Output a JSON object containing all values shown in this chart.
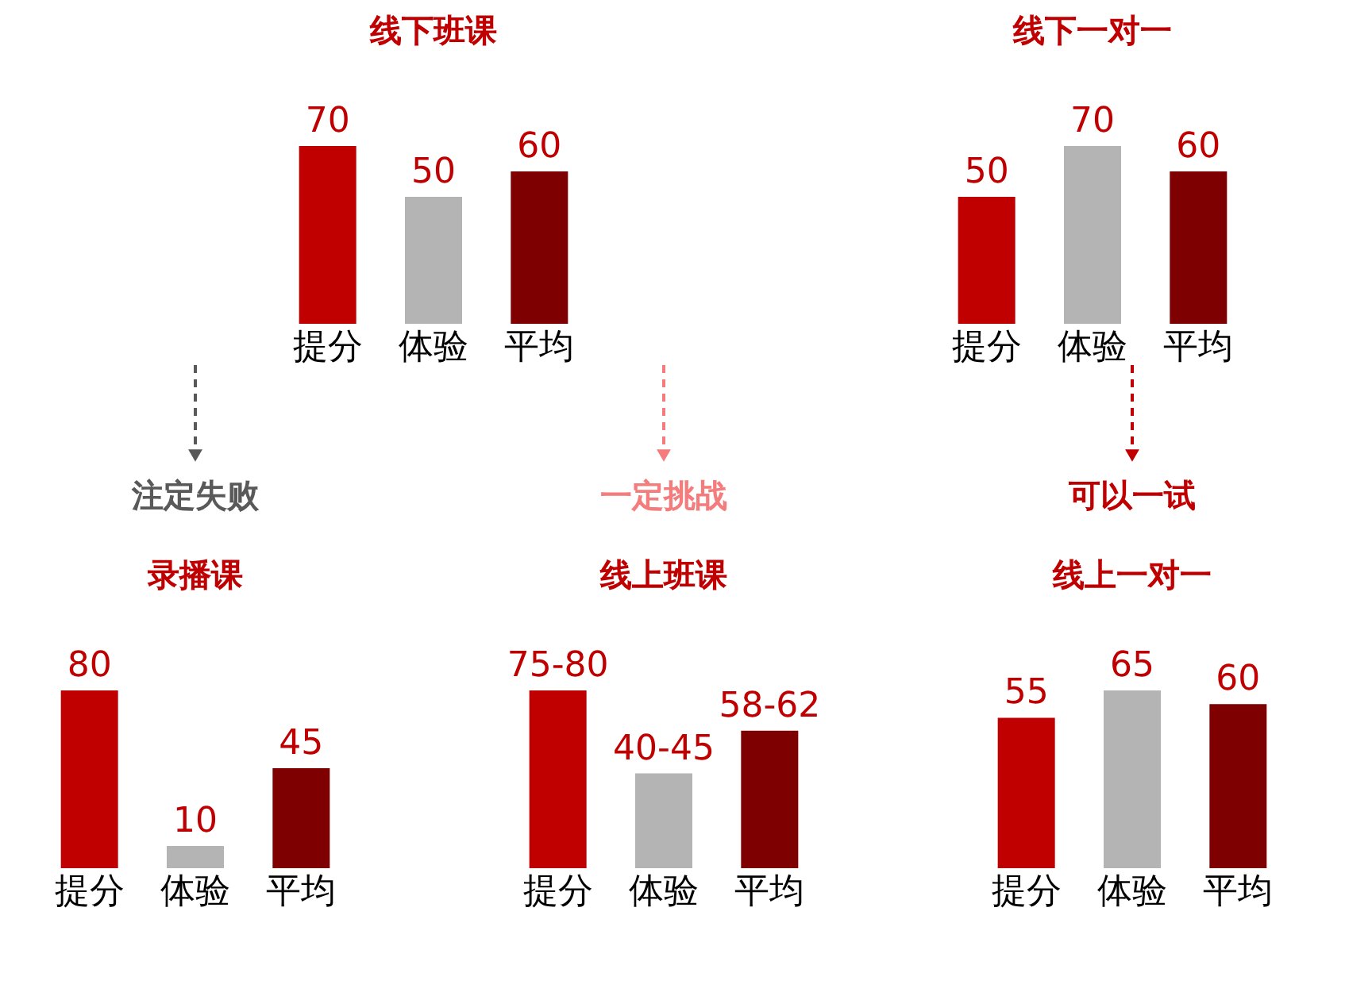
{
  "chart_data": [
    {
      "type": "bar",
      "title": "线下班课",
      "categories": [
        "提分",
        "体验",
        "平均"
      ],
      "values": [
        70,
        50,
        60
      ],
      "colors": [
        "#c00000",
        "#b4b4b4",
        "#7f0000"
      ],
      "data_labels": true,
      "tick_labels": "x"
    },
    {
      "type": "bar",
      "title": "线下一对一",
      "categories": [
        "提分",
        "体验",
        "平均"
      ],
      "values": [
        50,
        70,
        60
      ],
      "colors": [
        "#c00000",
        "#b4b4b4",
        "#7f0000"
      ],
      "data_labels": true,
      "tick_labels": "x"
    },
    {
      "type": "bar",
      "title": "录播课",
      "annotations": [
        "注定失败"
      ],
      "categories": [
        "提分",
        "体验",
        "平均"
      ],
      "values": [
        80,
        10,
        45
      ],
      "colors": [
        "#c00000",
        "#b4b4b4",
        "#7f0000"
      ],
      "data_labels": true,
      "tick_labels": "x"
    },
    {
      "type": "bar",
      "title": "线上班课",
      "annotations": [
        "一定挑战"
      ],
      "categories": [
        "提分",
        "体验",
        "平均"
      ],
      "values": [
        75,
        40,
        58
      ],
      "value_labels": [
        "75-80",
        "40-45",
        "58-62"
      ],
      "colors": [
        "#c00000",
        "#b4b4b4",
        "#7f0000"
      ],
      "tick_labels": "x"
    },
    {
      "type": "bar",
      "title": "线上一对一",
      "annotations": [
        "可以一试"
      ],
      "categories": [
        "提分",
        "体验",
        "平均"
      ],
      "values": [
        55,
        65,
        60
      ],
      "colors": [
        "#c00000",
        "#b4b4b4",
        "#7f0000"
      ],
      "data_labels": true,
      "tick_labels": "x"
    }
  ]
}
